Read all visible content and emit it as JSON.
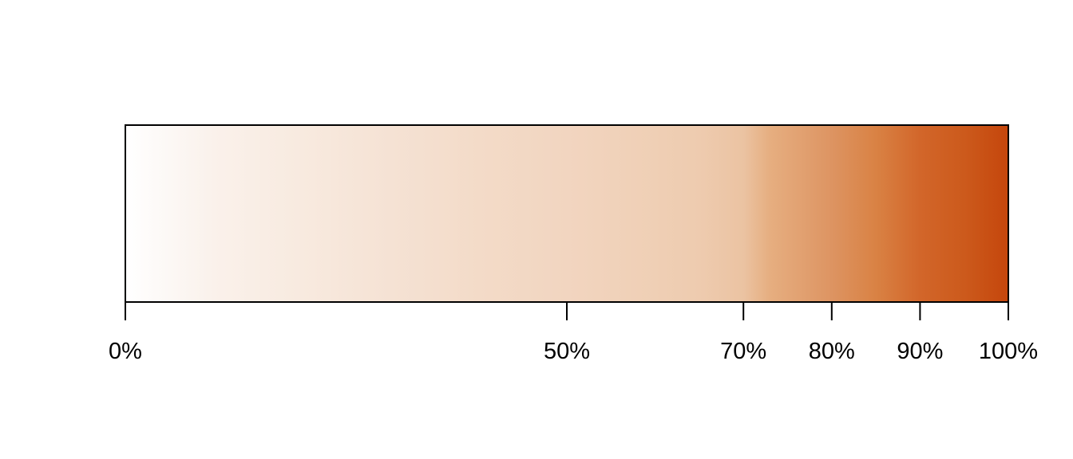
{
  "chart_data": {
    "type": "heatmap",
    "title": "",
    "xlabel": "",
    "ylabel": "",
    "xlim": [
      0,
      100
    ],
    "grid": false,
    "legend": "none",
    "colorbar": {
      "orientation": "horizontal",
      "stops": [
        {
          "position": 0,
          "color": "#FFFFFF"
        },
        {
          "position": 5,
          "color": "#FCF8F5"
        },
        {
          "position": 10,
          "color": "#FAF1EB"
        },
        {
          "position": 20,
          "color": "#F8EADF"
        },
        {
          "position": 30,
          "color": "#F5E2D4"
        },
        {
          "position": 40,
          "color": "#F3DBC8"
        },
        {
          "position": 50,
          "color": "#F2D5C0"
        },
        {
          "position": 60,
          "color": "#EFCFB5"
        },
        {
          "position": 65,
          "color": "#EECBAF"
        },
        {
          "position": 70,
          "color": "#EBC3A2"
        },
        {
          "position": 73,
          "color": "#E6AE80"
        },
        {
          "position": 80,
          "color": "#DD9462"
        },
        {
          "position": 85,
          "color": "#D98244"
        },
        {
          "position": 90,
          "color": "#D2662A"
        },
        {
          "position": 95,
          "color": "#CC5A1C"
        },
        {
          "position": 100,
          "color": "#C5460C"
        }
      ]
    },
    "ticks": [
      {
        "value": 0,
        "label": "0%"
      },
      {
        "value": 50,
        "label": "50%"
      },
      {
        "value": 70,
        "label": "70%"
      },
      {
        "value": 80,
        "label": "80%"
      },
      {
        "value": 90,
        "label": "90%"
      },
      {
        "value": 100,
        "label": "100%"
      }
    ]
  }
}
